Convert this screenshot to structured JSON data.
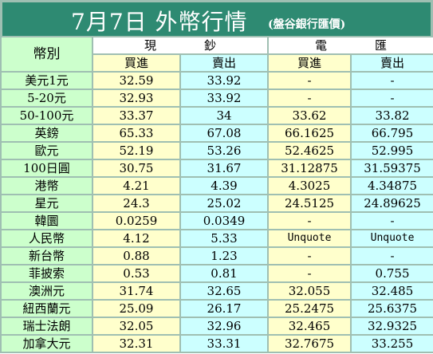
{
  "title": {
    "main": "7月7日 外幣行情",
    "sub": "(盤谷銀行匯價)"
  },
  "header": {
    "currency_label": "幣別",
    "cash_group": "現　　　　鈔",
    "wire_group": "電　　　　匯",
    "buy": "買進",
    "sell": "賣出"
  },
  "colors": {
    "title_bg": "#2e8a72",
    "name_col": "#ccffcc",
    "cash_cols": "#ffffcc",
    "wire_cols": "#ccffff",
    "grid": "#9fbfb2"
  },
  "rows": [
    {
      "name": "美元1元",
      "cash_buy": "32.59",
      "cash_sell": "33.92",
      "wire_buy": "-",
      "wire_sell": "-"
    },
    {
      "name": "5-20元",
      "cash_buy": "32.93",
      "cash_sell": "33.92",
      "wire_buy": "-",
      "wire_sell": "-"
    },
    {
      "name": "50-100元",
      "cash_buy": "33.37",
      "cash_sell": "34",
      "wire_buy": "33.62",
      "wire_sell": "33.82"
    },
    {
      "name": "英鎊",
      "cash_buy": "65.33",
      "cash_sell": "67.08",
      "wire_buy": "66.1625",
      "wire_sell": "66.795"
    },
    {
      "name": "歐元",
      "cash_buy": "52.19",
      "cash_sell": "53.26",
      "wire_buy": "52.4625",
      "wire_sell": "52.995"
    },
    {
      "name": "100日圓",
      "cash_buy": "30.75",
      "cash_sell": "31.67",
      "wire_buy": "31.12875",
      "wire_sell": "31.59375"
    },
    {
      "name": "港幣",
      "cash_buy": "4.21",
      "cash_sell": "4.39",
      "wire_buy": "4.3025",
      "wire_sell": "4.34875"
    },
    {
      "name": "星元",
      "cash_buy": "24.3",
      "cash_sell": "25.02",
      "wire_buy": "24.5125",
      "wire_sell": "24.89625"
    },
    {
      "name": "韓圜",
      "cash_buy": "0.0259",
      "cash_sell": "0.0349",
      "wire_buy": "-",
      "wire_sell": "-"
    },
    {
      "name": "人民幣",
      "cash_buy": "4.12",
      "cash_sell": "5.33",
      "wire_buy": "Unquote",
      "wire_sell": "Unquote"
    },
    {
      "name": "新台幣",
      "cash_buy": "0.88",
      "cash_sell": "1.23",
      "wire_buy": "-",
      "wire_sell": "-"
    },
    {
      "name": "菲披索",
      "cash_buy": "0.53",
      "cash_sell": "0.81",
      "wire_buy": "-",
      "wire_sell": "0.755"
    },
    {
      "name": "澳洲元",
      "cash_buy": "31.74",
      "cash_sell": "32.65",
      "wire_buy": "32.055",
      "wire_sell": "32.485"
    },
    {
      "name": "紐西蘭元",
      "cash_buy": "25.09",
      "cash_sell": "26.17",
      "wire_buy": "25.2475",
      "wire_sell": "25.6375"
    },
    {
      "name": "瑞士法朗",
      "cash_buy": "32.05",
      "cash_sell": "32.96",
      "wire_buy": "32.465",
      "wire_sell": "32.9325"
    },
    {
      "name": "加拿大元",
      "cash_buy": "32.31",
      "cash_sell": "33.31",
      "wire_buy": "32.7675",
      "wire_sell": "33.255"
    }
  ]
}
